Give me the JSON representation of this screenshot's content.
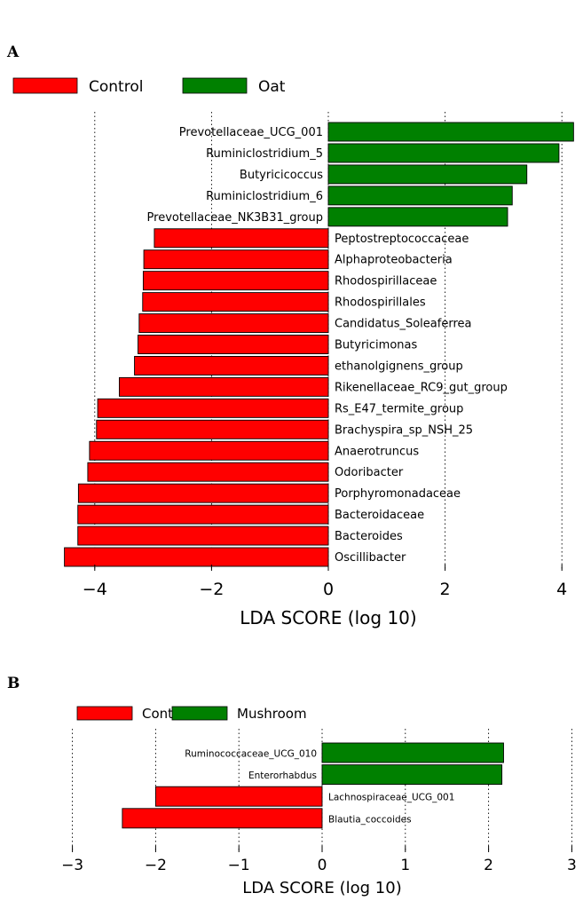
{
  "chart_data": [
    {
      "panel": "A",
      "type": "bar",
      "orientation": "horizontal",
      "title": "",
      "xlabel": "LDA SCORE (log 10)",
      "ylabel": "",
      "xlim": [
        -4.5,
        4.2
      ],
      "xticks": [
        -4,
        -2,
        0,
        2,
        4
      ],
      "tick_labels": [
        "−4",
        "−2",
        "0",
        "2",
        "4"
      ],
      "grid": "vertical dotted",
      "legend": [
        {
          "name": "Control",
          "color": "#ff0000"
        },
        {
          "name": "Oat",
          "color": "#008000"
        }
      ],
      "legend_position": "top-left",
      "bars": [
        {
          "label": "Prevotellaceae_UCG_001",
          "value": 4.2,
          "group": "Oat"
        },
        {
          "label": "Ruminiclostridium_5",
          "value": 3.95,
          "group": "Oat"
        },
        {
          "label": "Butyricicoccus",
          "value": 3.4,
          "group": "Oat"
        },
        {
          "label": "Ruminiclostridium_6",
          "value": 3.15,
          "group": "Oat"
        },
        {
          "label": "Prevotellaceae_NK3B31_group",
          "value": 3.07,
          "group": "Oat"
        },
        {
          "label": "Peptostreptococcaceae",
          "value": -2.98,
          "group": "Control"
        },
        {
          "label": "Alphaproteobacteria",
          "value": -3.16,
          "group": "Control"
        },
        {
          "label": "Rhodospirillaceae",
          "value": -3.17,
          "group": "Control"
        },
        {
          "label": "Rhodospirillales",
          "value": -3.18,
          "group": "Control"
        },
        {
          "label": "Candidatus_Soleaferrea",
          "value": -3.24,
          "group": "Control"
        },
        {
          "label": "Butyricimonas",
          "value": -3.26,
          "group": "Control"
        },
        {
          "label": "ethanolgignens_group",
          "value": -3.32,
          "group": "Control"
        },
        {
          "label": "Rikenellaceae_RC9_gut_group",
          "value": -3.58,
          "group": "Control"
        },
        {
          "label": "Rs_E47_termite_group",
          "value": -3.95,
          "group": "Control"
        },
        {
          "label": "Brachyspira_sp_NSH_25",
          "value": -3.97,
          "group": "Control"
        },
        {
          "label": "Anaerotruncus",
          "value": -4.09,
          "group": "Control"
        },
        {
          "label": "Odoribacter",
          "value": -4.12,
          "group": "Control"
        },
        {
          "label": "Porphyromonadaceae",
          "value": -4.28,
          "group": "Control"
        },
        {
          "label": "Bacteroidaceae",
          "value": -4.29,
          "group": "Control"
        },
        {
          "label": "Bacteroides",
          "value": -4.29,
          "group": "Control"
        },
        {
          "label": "Oscillibacter",
          "value": -4.52,
          "group": "Control"
        }
      ]
    },
    {
      "panel": "B",
      "type": "bar",
      "orientation": "horizontal",
      "title": "",
      "xlabel": "LDA SCORE (log 10)",
      "ylabel": "",
      "xlim": [
        -3.3,
        3.2
      ],
      "xticks": [
        -3,
        -2,
        -1,
        0,
        1,
        2,
        3
      ],
      "tick_labels": [
        "−3",
        "−2",
        "−1",
        "0",
        "1",
        "2",
        "3"
      ],
      "grid": "vertical dotted",
      "legend": [
        {
          "name": "Control",
          "color": "#ff0000"
        },
        {
          "name": "Mushroom",
          "color": "#008000"
        }
      ],
      "legend_position": "top-left",
      "bars": [
        {
          "label": "Ruminococcaceae_UCG_010",
          "value": 2.18,
          "group": "Mushroom"
        },
        {
          "label": "Enterorhabdus",
          "value": 2.16,
          "group": "Mushroom"
        },
        {
          "label": "Lachnospiraceae_UCG_001",
          "value": -2.0,
          "group": "Control"
        },
        {
          "label": "Blautia_coccoides",
          "value": -2.4,
          "group": "Control"
        }
      ]
    }
  ]
}
